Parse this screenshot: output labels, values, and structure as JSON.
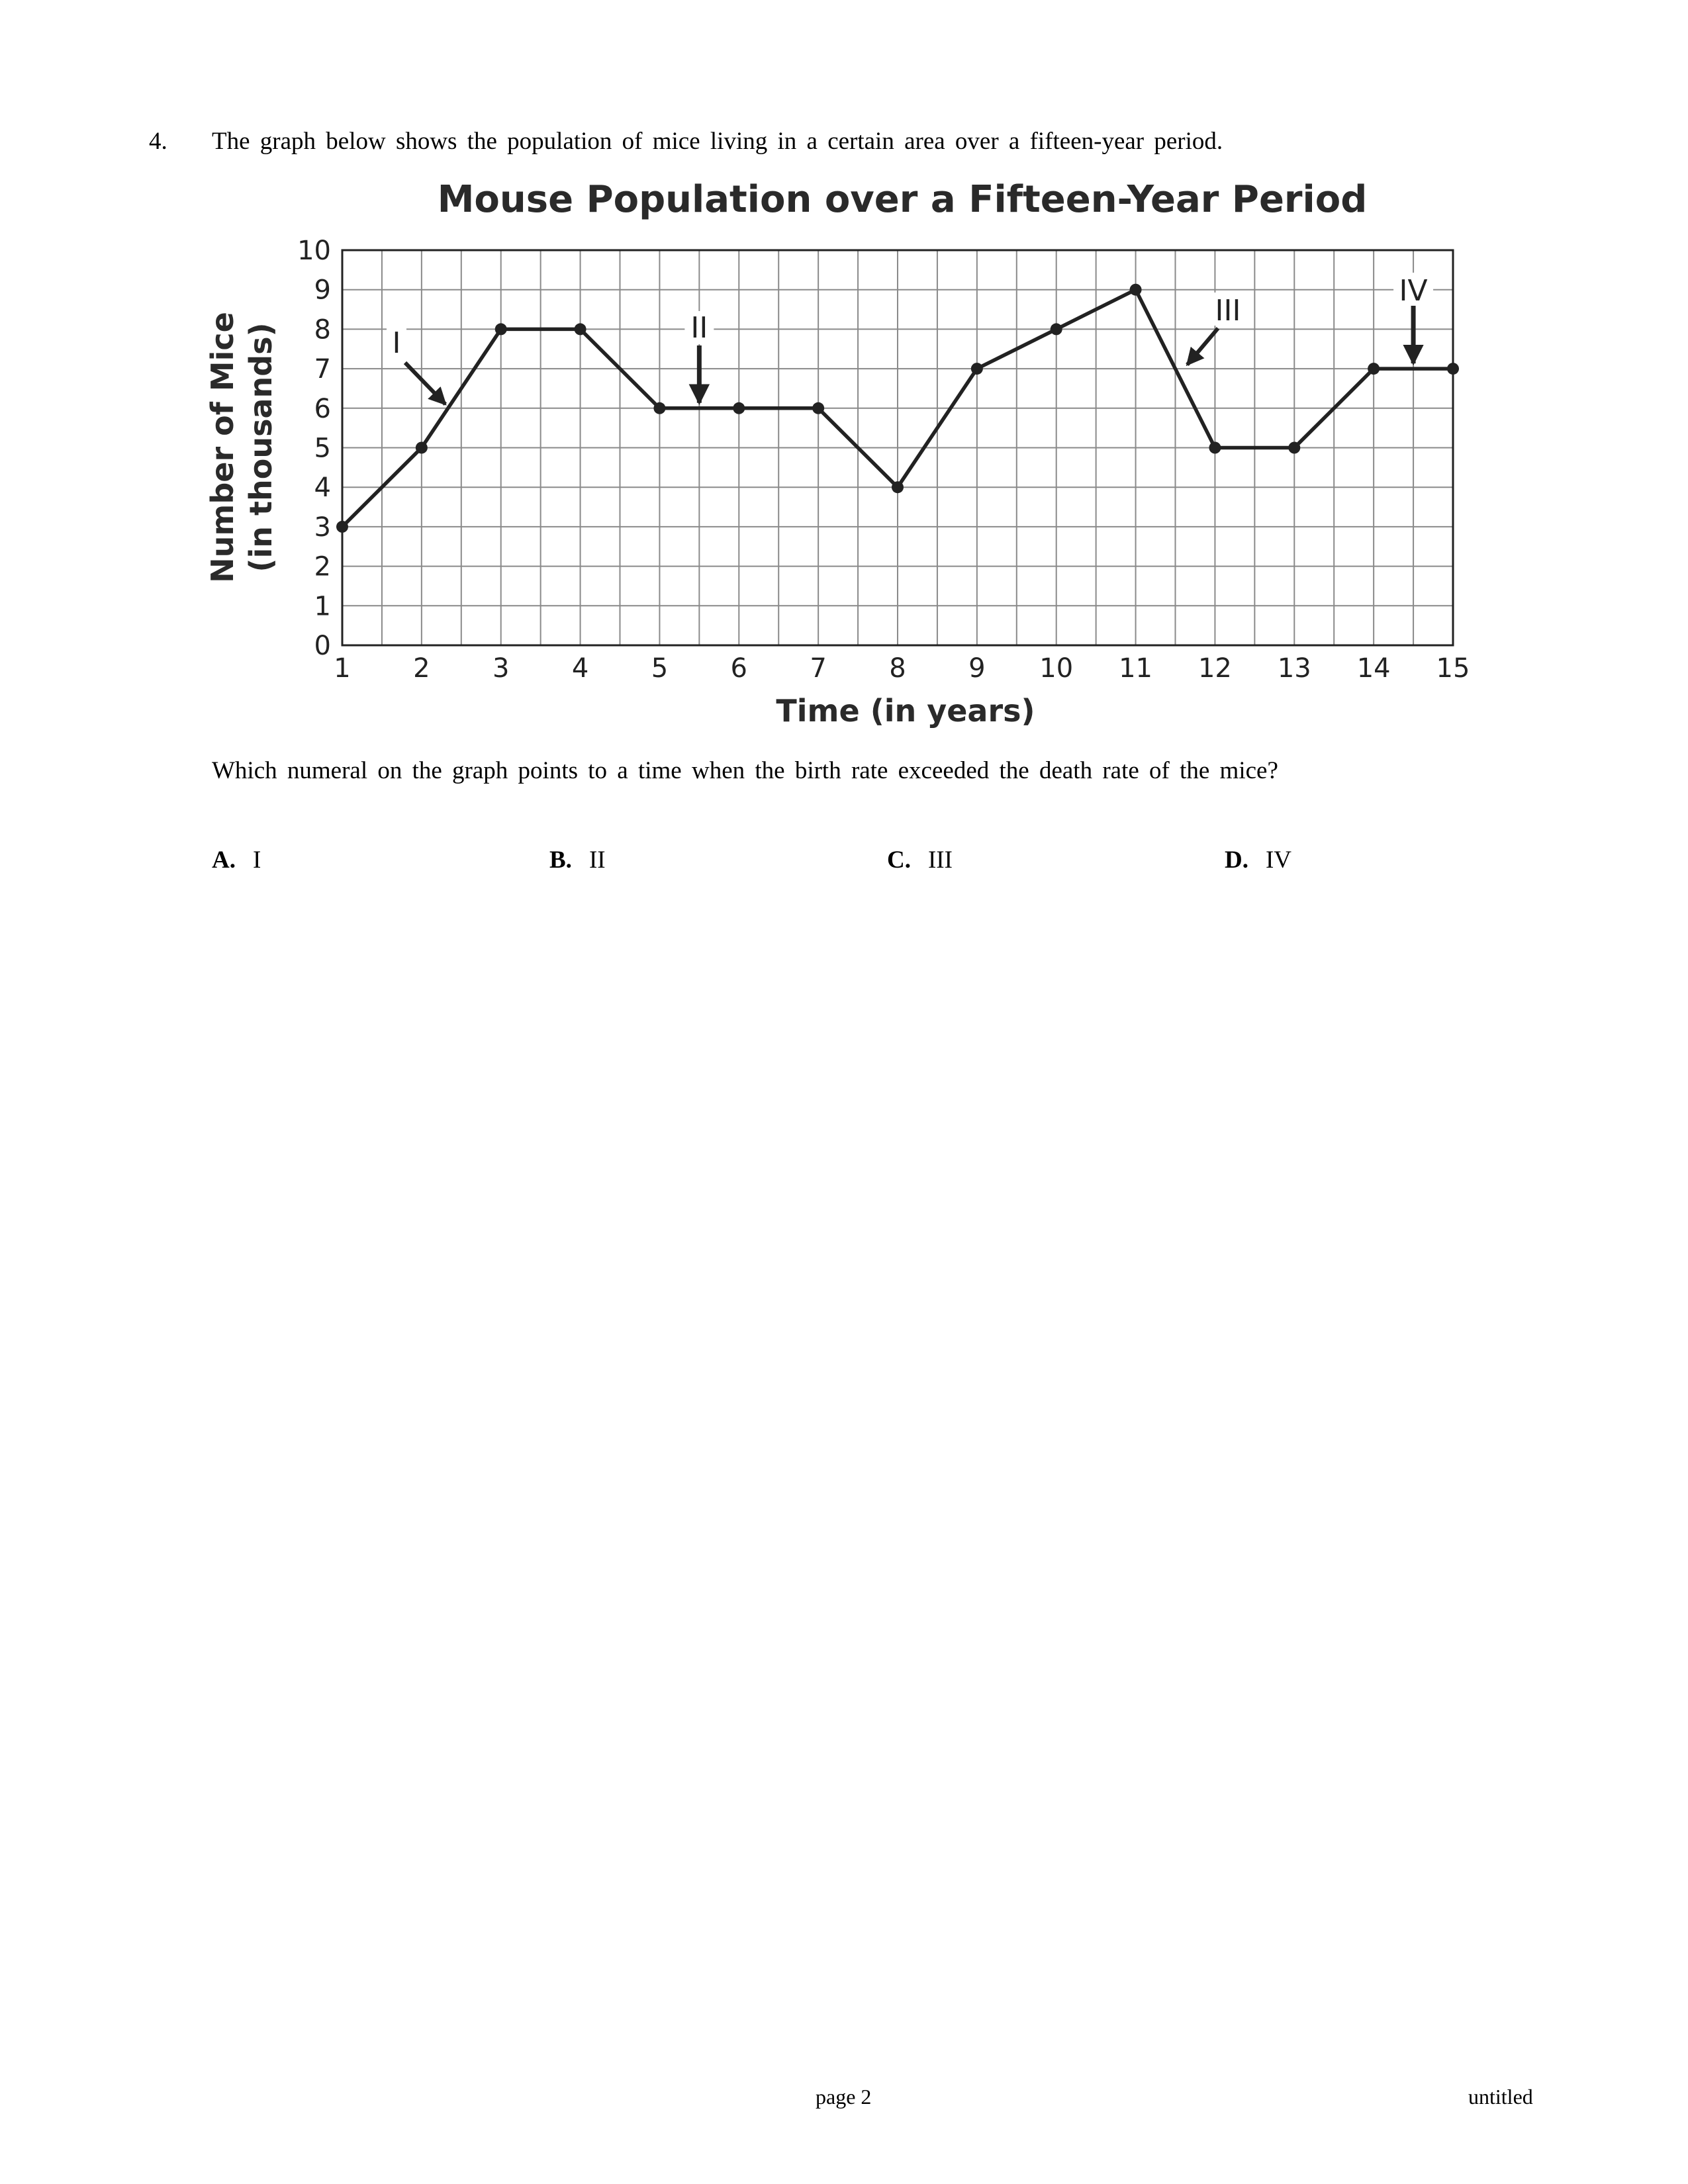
{
  "question": {
    "number": "4.",
    "stem": "The graph below shows the population of mice living in a certain area over a fifteen-year period.",
    "prompt": "Which numeral on the graph points to a time when the birth rate exceeded the death rate of the mice?",
    "choices": [
      {
        "letter": "A.",
        "text": "I"
      },
      {
        "letter": "B.",
        "text": "II"
      },
      {
        "letter": "C.",
        "text": "III"
      },
      {
        "letter": "D.",
        "text": "IV"
      }
    ]
  },
  "chart_data": {
    "type": "line",
    "title": "Mouse Population over a Fifteen-Year Period",
    "xlabel": "Time (in years)",
    "ylabel_line1": "Number of Mice",
    "ylabel_line2": "(in thousands)",
    "x": [
      1,
      2,
      3,
      4,
      5,
      6,
      7,
      8,
      9,
      10,
      11,
      12,
      13,
      14,
      15
    ],
    "y": [
      3,
      5,
      8,
      8,
      6,
      6,
      6,
      4,
      7,
      8,
      9,
      5,
      5,
      7,
      7
    ],
    "xlim": [
      1,
      15
    ],
    "ylim": [
      0,
      10
    ],
    "xticks": [
      "1",
      "2",
      "3",
      "4",
      "5",
      "6",
      "7",
      "8",
      "9",
      "10",
      "11",
      "12",
      "13",
      "14",
      "15"
    ],
    "yticks": [
      "0",
      "1",
      "2",
      "3",
      "4",
      "5",
      "6",
      "7",
      "8",
      "9",
      "10"
    ],
    "grid": true,
    "annotations": [
      {
        "label": "I",
        "x": 2.3,
        "y": 6
      },
      {
        "label": "II",
        "x": 5.5,
        "y": 6
      },
      {
        "label": "III",
        "x": 11.6,
        "y": 7
      },
      {
        "label": "IV",
        "x": 14.5,
        "y": 7
      }
    ]
  },
  "footer": {
    "page": "page 2",
    "doc": "untitled"
  }
}
